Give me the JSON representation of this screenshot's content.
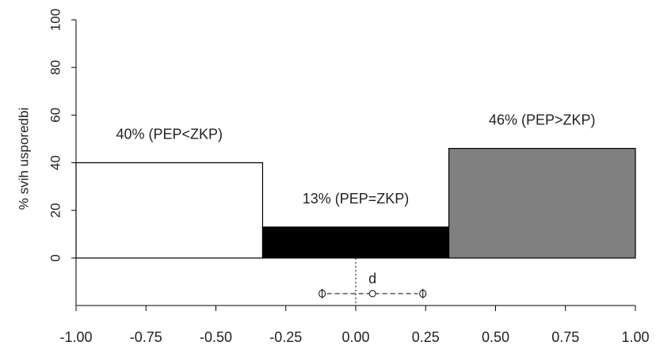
{
  "chart_data": {
    "type": "bar",
    "ylabel": "% svih usporedbi",
    "xlabel": "",
    "xlim": [
      -1.0,
      1.0
    ],
    "ylim": [
      0,
      100
    ],
    "x_ticks": [
      "-1.00",
      "-0.75",
      "-0.50",
      "-0.25",
      "0.00",
      "0.25",
      "0.50",
      "0.75",
      "1.00"
    ],
    "y_ticks": [
      "0",
      "20",
      "40",
      "60",
      "80",
      "100"
    ],
    "bars": [
      {
        "label": "40% (PEP<ZKP)",
        "x_from": -1.0,
        "x_to": -0.333,
        "value": 40,
        "color": "#ffffff"
      },
      {
        "label": "13% (PEP=ZKP)",
        "x_from": -0.333,
        "x_to": 0.333,
        "value": 13,
        "color": "#000000"
      },
      {
        "label": "46% (PEP>ZKP)",
        "x_from": 0.333,
        "x_to": 1.0,
        "value": 46,
        "color": "#808080"
      }
    ],
    "reference_line_x": 0.0,
    "estimate": {
      "label": "d",
      "point": 0.06,
      "ci_low": -0.12,
      "ci_high": 0.24
    }
  }
}
